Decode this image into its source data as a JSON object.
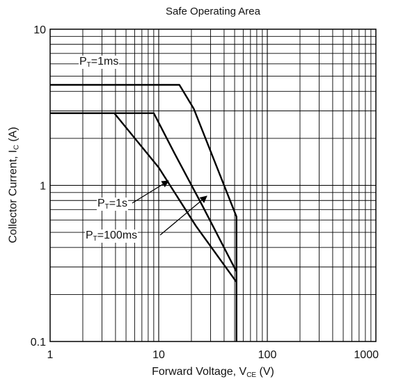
{
  "chart_data": {
    "type": "line",
    "title": "Safe Operating Area",
    "xlabel": {
      "main": "Forward Voltage, V",
      "sub": "CE",
      "suffix": " (V)"
    },
    "ylabel": {
      "main": "Collector Current, I",
      "sub": "C",
      "suffix": " (A)"
    },
    "x_scale": "log",
    "y_scale": "log",
    "xlim": [
      1,
      1000
    ],
    "ylim": [
      0.1,
      10
    ],
    "grid": true,
    "x_ticks": [
      {
        "value": 1,
        "label": "1"
      },
      {
        "value": 10,
        "label": "10"
      },
      {
        "value": 100,
        "label": "100"
      },
      {
        "value": 1000,
        "label": "1000"
      }
    ],
    "y_ticks": [
      {
        "value": 0.1,
        "label": "0.1"
      },
      {
        "value": 1,
        "label": "1"
      },
      {
        "value": 10,
        "label": "10"
      }
    ],
    "series": [
      {
        "name": {
          "main": "P",
          "sub": "T",
          "rest": "=1ms"
        },
        "points": [
          [
            1,
            4.4
          ],
          [
            15.5,
            4.4
          ],
          [
            21,
            3.1
          ],
          [
            52,
            0.63
          ],
          [
            52,
            0.1
          ]
        ]
      },
      {
        "name": {
          "main": "P",
          "sub": "T",
          "rest": "=100ms"
        },
        "points": [
          [
            1,
            2.9
          ],
          [
            9,
            2.9
          ],
          [
            14,
            1.6
          ],
          [
            25,
            0.75
          ],
          [
            52,
            0.28
          ]
        ]
      },
      {
        "name": {
          "main": "P",
          "sub": "T",
          "rest": "=1s"
        },
        "points": [
          [
            1,
            2.9
          ],
          [
            3.9,
            2.9
          ],
          [
            10,
            1.3
          ],
          [
            22,
            0.55
          ],
          [
            52,
            0.24
          ]
        ]
      }
    ]
  }
}
